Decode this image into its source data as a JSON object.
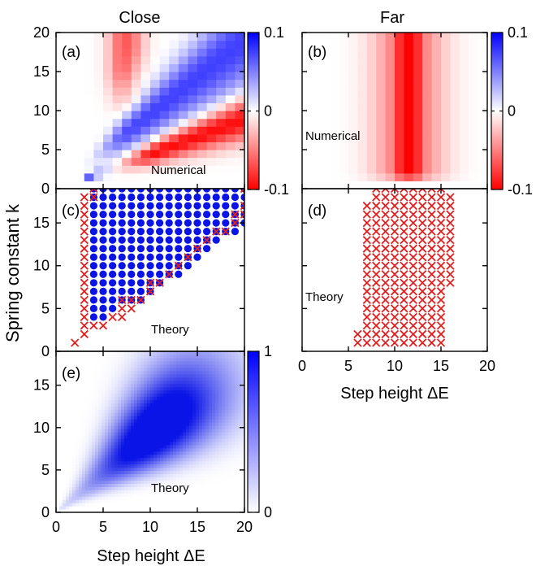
{
  "columns": {
    "left_title": "Close",
    "right_title": "Far"
  },
  "axes": {
    "ylabel": "Spring constant k",
    "xlabel": "Step height ΔE",
    "x_ticks": [
      "0",
      "5",
      "10",
      "15",
      "20"
    ],
    "y_ticks_ab": [
      "20",
      "15",
      "10",
      "5",
      "0"
    ],
    "y_ticks_cde": [
      "15",
      "10",
      "5",
      "0"
    ]
  },
  "colors": {
    "positive": "#0000ff",
    "negative": "#ff0000",
    "zero": "#ffffff",
    "marker_x": "#e02020",
    "marker_dot": "#0a14e6",
    "probability": "#0a14e6"
  },
  "panels": {
    "a": {
      "tag": "(a)",
      "label": "Numerical"
    },
    "b": {
      "tag": "(b)",
      "label": "Numerical"
    },
    "c": {
      "tag": "(c)",
      "label": "Theory"
    },
    "d": {
      "tag": "(d)",
      "label": "Theory"
    },
    "e": {
      "tag": "(e)",
      "label": "Theory"
    }
  },
  "colorbars": {
    "signed": {
      "ticks": [
        "0.1",
        "0",
        "-0.1"
      ],
      "range": [
        -0.1,
        0.1
      ]
    },
    "prob": {
      "ticks": [
        "1",
        "0"
      ],
      "range": [
        0,
        1
      ]
    }
  },
  "chart_data": [
    {
      "panel": "a",
      "type": "heatmap",
      "xlim": [
        0,
        20
      ],
      "ylim": [
        0,
        20
      ],
      "colorbar_range": [
        -0.1,
        0.1
      ],
      "features": [
        {
          "sign": "positive",
          "description_value": 0.07,
          "band": "k between about 0.6 and 1.3 times ΔE, ΔE 4-20"
        },
        {
          "sign": "negative",
          "description_value": -0.1,
          "band": "k between about 0.3 and 0.6 times ΔE, ΔE 8-20"
        },
        {
          "sign": "negative",
          "description_value": -0.05,
          "band": "ΔE 6-8, k 15-20"
        }
      ]
    },
    {
      "panel": "b",
      "type": "heatmap",
      "xlim": [
        0,
        20
      ],
      "ylim": [
        0,
        20
      ],
      "colorbar_range": [
        -0.1,
        0.1
      ],
      "features": [
        {
          "sign": "negative",
          "description_value": -0.1,
          "band": "ΔE 9-14, k 1-20"
        },
        {
          "sign": "negative",
          "description_value": -0.05,
          "band": "ΔE 7-9 and 14-16, k 1-20"
        }
      ]
    },
    {
      "panel": "c",
      "type": "scatter",
      "xlim": [
        0,
        20
      ],
      "ylim": [
        0,
        19
      ],
      "series": [
        {
          "marker": "dot",
          "rows": [
            [
              4,
              4,
              5
            ],
            [
              5,
              4,
              6
            ],
            [
              6,
              4,
              9
            ],
            [
              7,
              4,
              10
            ],
            [
              8,
              4,
              11
            ],
            [
              9,
              4,
              13
            ],
            [
              10,
              4,
              14
            ],
            [
              11,
              4,
              15
            ],
            [
              12,
              4,
              16
            ],
            [
              13,
              4,
              17
            ],
            [
              14,
              4,
              19
            ],
            [
              15,
              4,
              20
            ],
            [
              16,
              4,
              20
            ],
            [
              17,
              4,
              20
            ],
            [
              18,
              4,
              20
            ],
            [
              19,
              4,
              20
            ]
          ]
        },
        {
          "marker": "cross",
          "rows": [
            [
              1,
              2,
              2
            ],
            [
              2,
              3,
              3
            ],
            [
              3,
              3,
              5
            ],
            [
              4,
              3,
              3
            ],
            [
              4,
              6,
              7
            ],
            [
              5,
              3,
              3
            ],
            [
              5,
              7,
              8
            ],
            [
              6,
              3,
              3
            ],
            [
              6,
              7,
              9
            ],
            [
              7,
              3,
              3
            ],
            [
              7,
              10,
              10
            ],
            [
              8,
              3,
              3
            ],
            [
              8,
              10,
              11
            ],
            [
              9,
              3,
              3
            ],
            [
              9,
              12,
              12
            ],
            [
              10,
              3,
              3
            ],
            [
              10,
              13,
              13
            ],
            [
              11,
              3,
              3
            ],
            [
              11,
              14,
              14
            ],
            [
              12,
              3,
              3
            ],
            [
              12,
              15,
              15
            ],
            [
              13,
              3,
              3
            ],
            [
              13,
              16,
              16
            ],
            [
              14,
              3,
              3
            ],
            [
              14,
              17,
              18
            ],
            [
              15,
              3,
              3
            ],
            [
              15,
              19,
              19
            ],
            [
              16,
              3,
              3
            ],
            [
              16,
              19,
              20
            ],
            [
              17,
              3,
              3
            ],
            [
              17,
              20,
              20
            ],
            [
              18,
              3,
              4
            ],
            [
              19,
              4,
              4
            ],
            [
              19,
              20,
              20
            ]
          ]
        }
      ]
    },
    {
      "panel": "d",
      "type": "scatter",
      "xlim": [
        0,
        20
      ],
      "ylim": [
        0,
        19
      ],
      "series": [
        {
          "marker": "cross",
          "rows": [
            [
              1,
              6,
              15
            ],
            [
              2,
              6,
              15
            ],
            [
              3,
              7,
              15
            ],
            [
              4,
              7,
              15
            ],
            [
              5,
              7,
              15
            ],
            [
              6,
              7,
              15
            ],
            [
              7,
              7,
              15
            ],
            [
              8,
              7,
              16
            ],
            [
              9,
              7,
              16
            ],
            [
              10,
              7,
              16
            ],
            [
              11,
              7,
              16
            ],
            [
              12,
              7,
              16
            ],
            [
              13,
              7,
              16
            ],
            [
              14,
              7,
              16
            ],
            [
              15,
              7,
              16
            ],
            [
              16,
              7,
              16
            ],
            [
              17,
              7,
              16
            ],
            [
              18,
              8,
              16
            ],
            [
              19,
              8,
              15
            ]
          ]
        }
      ]
    },
    {
      "panel": "e",
      "type": "heatmap",
      "xlim": [
        0,
        20
      ],
      "ylim": [
        0,
        19
      ],
      "colorbar_range": [
        0,
        1
      ],
      "features": [
        {
          "value": 1.0,
          "center": [
            10,
            11
          ],
          "band": "k between about 0.45 and 1.5 times ΔE"
        }
      ]
    }
  ]
}
